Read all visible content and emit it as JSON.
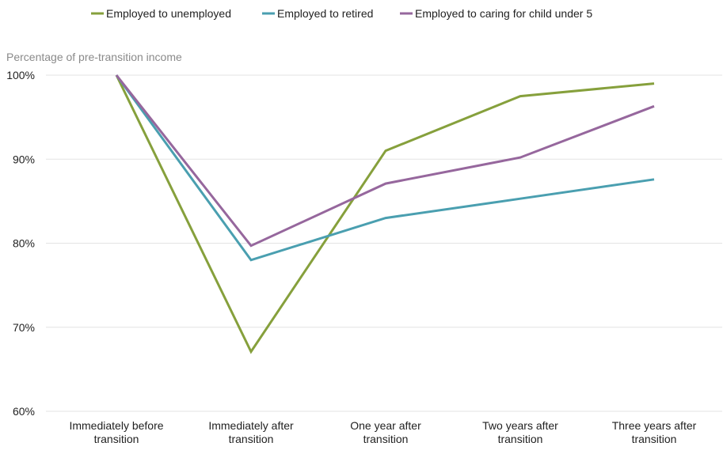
{
  "chart_data": {
    "type": "line",
    "ylabel": "Percentage of pre-transition income",
    "ylim": [
      60,
      100
    ],
    "yticks": [
      {
        "value": 100,
        "label": "100%"
      },
      {
        "value": 90,
        "label": "90%"
      },
      {
        "value": 80,
        "label": "80%"
      },
      {
        "value": 70,
        "label": "70%"
      },
      {
        "value": 60,
        "label": "60%"
      }
    ],
    "categories": [
      [
        "Immediately before",
        "transition"
      ],
      [
        "Immediately after",
        "transition"
      ],
      [
        "One year after",
        "transition"
      ],
      [
        "Two years after",
        "transition"
      ],
      [
        "Three years after",
        "transition"
      ]
    ],
    "grid": true,
    "legend_position": "top",
    "series": [
      {
        "name": "Employed to unemployed",
        "color": "#86a03c",
        "values": [
          100,
          67.1,
          91,
          97.5,
          99
        ]
      },
      {
        "name": "Employed to retired",
        "color": "#4a9fb0",
        "values": [
          100,
          78,
          83,
          85.3,
          87.6
        ]
      },
      {
        "name": "Employed to caring for child under 5",
        "color": "#96679d",
        "values": [
          100,
          79.7,
          87.1,
          90.2,
          96.3
        ]
      }
    ]
  }
}
